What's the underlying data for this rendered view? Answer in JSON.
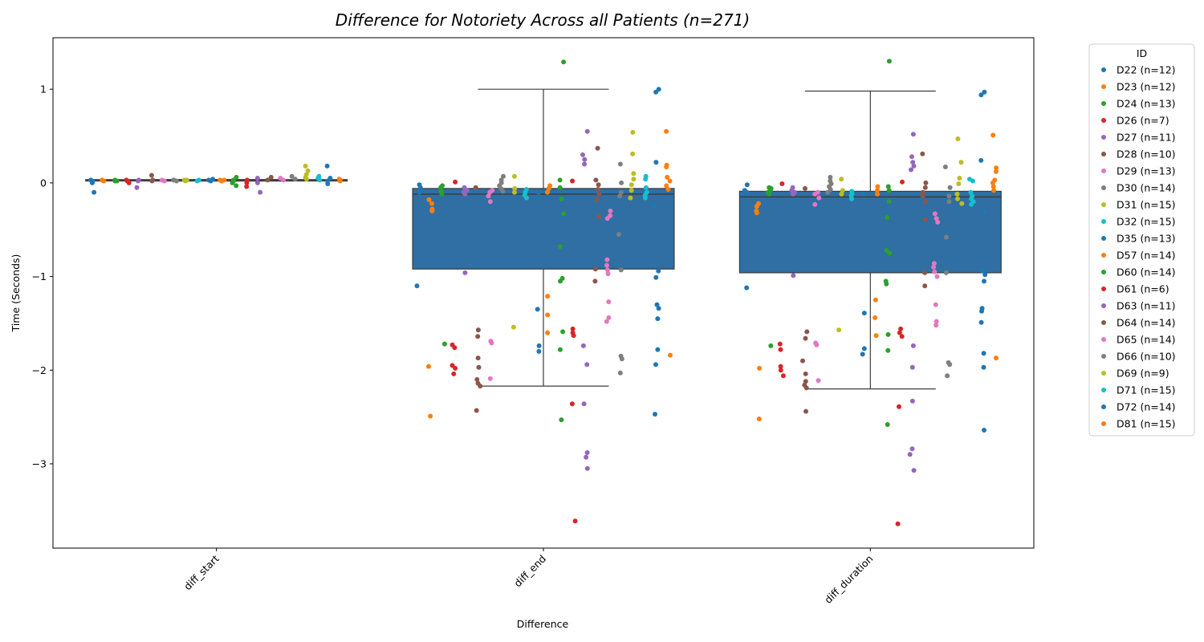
{
  "chart_data": {
    "type": "box",
    "subtype": "boxplot with overlaid stripplot",
    "title": "Difference for Notoriety Across all Patients (n=271)",
    "xlabel": "Difference",
    "ylabel": "Time (Seconds)",
    "categories": [
      "diff_start",
      "diff_end",
      "diff_duration"
    ],
    "ylim": [
      -3.9,
      1.55
    ],
    "yticks": [
      1,
      0,
      -1,
      -2,
      -3
    ],
    "ytick_labels": [
      "1",
      "0",
      "−1",
      "−2",
      "−3"
    ],
    "grid": false,
    "legend": {
      "title": "ID",
      "position": "outside-right"
    },
    "box_color": "#2f6fa3",
    "boxes": [
      {
        "category": "diff_start",
        "q1": 0.02,
        "median": 0.03,
        "q3": 0.035,
        "whisker_low": 0.02,
        "whisker_high": 0.035
      },
      {
        "category": "diff_end",
        "q1": -0.92,
        "median": -0.12,
        "q3": -0.06,
        "whisker_low": -2.17,
        "whisker_high": 1.0
      },
      {
        "category": "diff_duration",
        "q1": -0.96,
        "median": -0.15,
        "q3": -0.09,
        "whisker_low": -2.2,
        "whisker_high": 0.98
      }
    ],
    "series": [
      {
        "name": "D22 (n=12)",
        "color": "#1f77b4",
        "diff_start": [
          0.01,
          0.03,
          0.0,
          -0.1,
          0.02
        ],
        "diff_end": [
          -0.02,
          -1.1,
          -0.05,
          -0.1
        ],
        "diff_duration": [
          -0.02,
          -1.12,
          -0.08,
          -0.1
        ]
      },
      {
        "name": "D23 (n=12)",
        "color": "#ff7f0e",
        "diff_start": [
          0.03,
          0.02,
          0.03
        ],
        "diff_end": [
          -0.18,
          -0.22,
          -0.28,
          -0.3,
          -1.96,
          -2.49
        ],
        "diff_duration": [
          -0.22,
          -0.25,
          -0.3,
          -0.32,
          -1.98,
          -2.52
        ]
      },
      {
        "name": "D24 (n=13)",
        "color": "#2ca02c",
        "diff_start": [
          0.02,
          0.03,
          0.02
        ],
        "diff_end": [
          -0.05,
          -0.08,
          -0.1,
          -0.12,
          -0.03,
          -1.72
        ],
        "diff_duration": [
          -0.05,
          -0.08,
          -0.1,
          -0.12,
          -0.06,
          -1.74
        ]
      },
      {
        "name": "D26 (n=7)",
        "color": "#d62728",
        "diff_start": [
          0.03,
          0.02,
          0.0
        ],
        "diff_end": [
          0.01,
          -1.73,
          -1.76,
          -1.95,
          -1.98,
          -2.04
        ],
        "diff_duration": [
          -0.01,
          -1.72,
          -1.78,
          -1.96,
          -2.0,
          -2.06
        ]
      },
      {
        "name": "D27 (n=11)",
        "color": "#9467bd",
        "diff_start": [
          0.03,
          -0.05,
          0.02
        ],
        "diff_end": [
          -0.05,
          -0.08,
          -0.1,
          -0.12,
          -0.96
        ],
        "diff_duration": [
          -0.05,
          -0.08,
          -0.1,
          -0.12,
          -0.99
        ]
      },
      {
        "name": "D28 (n=10)",
        "color": "#8c564b",
        "diff_start": [
          0.03,
          0.08,
          0.02
        ],
        "diff_end": [
          -0.05,
          -1.57,
          -1.64,
          -1.87,
          -1.97,
          -2.1,
          -2.14,
          -2.17,
          -2.43
        ],
        "diff_duration": [
          -0.06,
          -1.59,
          -1.66,
          -1.9,
          -2.04,
          -2.12,
          -2.16,
          -2.19,
          -2.44
        ]
      },
      {
        "name": "D29 (n=13)",
        "color": "#e377c2",
        "diff_start": [
          0.03,
          0.02
        ],
        "diff_end": [
          -0.08,
          -0.1,
          -0.14,
          -0.2,
          -1.69,
          -1.71,
          -2.09
        ],
        "diff_duration": [
          -0.1,
          -0.12,
          -0.16,
          -0.23,
          -1.71,
          -1.73,
          -2.11
        ]
      },
      {
        "name": "D30 (n=14)",
        "color": "#7f7f7f",
        "diff_start": [
          0.03,
          0.02,
          0.03
        ],
        "diff_end": [
          0.07,
          0.03,
          0.0,
          -0.03,
          -0.06,
          -0.09
        ],
        "diff_duration": [
          0.06,
          0.02,
          -0.01,
          -0.04,
          -0.07,
          -0.1
        ]
      },
      {
        "name": "D31 (n=15)",
        "color": "#bcbd22",
        "diff_start": [
          0.03,
          0.02,
          0.03
        ],
        "diff_end": [
          0.07,
          -0.06,
          -0.1,
          -1.54
        ],
        "diff_duration": [
          0.04,
          -0.08,
          -0.12,
          -1.57
        ]
      },
      {
        "name": "D32 (n=15)",
        "color": "#17becf",
        "diff_start": [
          0.03,
          0.02
        ],
        "diff_end": [
          -0.07,
          -0.1,
          -0.13,
          -0.16
        ],
        "diff_duration": [
          -0.09,
          -0.12,
          -0.14,
          -0.17
        ]
      },
      {
        "name": "D35 (n=13)",
        "color": "#1f77b4",
        "diff_start": [
          0.03,
          0.02,
          0.04
        ],
        "diff_end": [
          -0.1,
          -1.35,
          -1.74,
          -1.8
        ],
        "diff_duration": [
          -0.12,
          -1.39,
          -1.77,
          -1.83
        ]
      },
      {
        "name": "D57 (n=14)",
        "color": "#ff7f0e",
        "diff_start": [
          0.03,
          0.02,
          0.03
        ],
        "diff_end": [
          -0.03,
          -0.06,
          -0.1,
          -1.21,
          -1.41,
          -1.6
        ],
        "diff_duration": [
          -0.04,
          -0.08,
          -0.12,
          -1.25,
          -1.44,
          -1.63
        ]
      },
      {
        "name": "D60 (n=14)",
        "color": "#2ca02c",
        "diff_start": [
          0.06,
          0.03,
          0.0,
          -0.03,
          0.02
        ],
        "diff_end": [
          1.29,
          0.03,
          -0.05,
          -0.17,
          -0.33,
          -0.68,
          -1.02,
          -1.05,
          -1.59,
          -1.78,
          -2.53
        ],
        "diff_duration": [
          1.3,
          -0.04,
          -0.08,
          -0.2,
          -0.37,
          -0.72,
          -0.75,
          -1.05,
          -1.08,
          -1.62,
          -1.79,
          -2.58
        ]
      },
      {
        "name": "D61 (n=6)",
        "color": "#d62728",
        "diff_start": [
          0.03,
          0.0,
          -0.04
        ],
        "diff_end": [
          0.02,
          -1.56,
          -1.6,
          -1.63,
          -2.36,
          -3.61
        ],
        "diff_duration": [
          0.01,
          -1.56,
          -1.6,
          -1.64,
          -2.39,
          -3.64
        ]
      },
      {
        "name": "D63 (n=11)",
        "color": "#9467bd",
        "diff_start": [
          0.05,
          0.0,
          -0.1
        ],
        "diff_end": [
          0.55,
          0.3,
          0.25,
          0.2,
          -1.74,
          -1.94,
          -2.36,
          -2.88,
          -2.93,
          -3.05
        ],
        "diff_duration": [
          0.52,
          0.28,
          0.22,
          0.18,
          0.14,
          -1.74,
          -1.97,
          -2.33,
          -2.84,
          -2.9,
          -3.07
        ]
      },
      {
        "name": "D64 (n=14)",
        "color": "#8c564b",
        "diff_start": [
          0.06,
          0.03
        ],
        "diff_end": [
          0.37,
          0.03,
          -0.02,
          -0.07,
          -0.12,
          -0.18,
          -0.36,
          -0.92,
          -1.05
        ],
        "diff_duration": [
          0.31,
          0.0,
          -0.05,
          -0.1,
          -0.14,
          -0.2,
          -0.39,
          -0.96,
          -1.1
        ]
      },
      {
        "name": "D65 (n=14)",
        "color": "#e377c2",
        "diff_start": [
          0.05,
          0.03
        ],
        "diff_end": [
          -0.3,
          -0.35,
          -0.38,
          -0.82,
          -0.88,
          -0.93,
          -0.97,
          -1.27,
          -1.44,
          -1.48
        ],
        "diff_duration": [
          -0.33,
          -0.38,
          -0.42,
          -0.86,
          -0.9,
          -0.95,
          -1.0,
          -1.3,
          -1.48,
          -1.52
        ]
      },
      {
        "name": "D66 (n=10)",
        "color": "#7f7f7f",
        "diff_start": [
          0.07,
          0.04
        ],
        "diff_end": [
          0.2,
          0.0,
          -0.1,
          -0.14,
          -0.55,
          -0.93,
          -1.85,
          -1.88,
          -2.03
        ],
        "diff_duration": [
          0.17,
          -0.05,
          -0.14,
          -0.2,
          -0.58,
          -0.96,
          -1.92,
          -1.94,
          -2.06
        ]
      },
      {
        "name": "D69 (n=9)",
        "color": "#bcbd22",
        "diff_start": [
          0.18,
          0.13,
          0.09,
          0.06,
          0.04
        ],
        "diff_end": [
          0.54,
          0.31,
          0.1,
          0.04,
          -0.02,
          -0.08,
          -0.16
        ],
        "diff_duration": [
          0.47,
          0.22,
          0.05,
          -0.01,
          -0.12,
          -0.17,
          -0.22
        ]
      },
      {
        "name": "D71 (n=15)",
        "color": "#17becf",
        "diff_start": [
          0.07,
          0.05,
          0.03
        ],
        "diff_end": [
          0.07,
          0.04,
          -0.05,
          -0.1,
          -0.13,
          -0.16
        ],
        "diff_duration": [
          0.04,
          0.02,
          -0.1,
          -0.14,
          -0.17,
          -0.2,
          -0.23
        ]
      },
      {
        "name": "D72 (n=14)",
        "color": "#1f77b4",
        "diff_start": [
          0.18,
          0.05,
          0.02,
          -0.01
        ],
        "diff_end": [
          1.0,
          0.97,
          0.22,
          -0.25,
          -0.94,
          -1.01,
          -1.3,
          -1.34,
          -1.45,
          -1.78,
          -1.94,
          -2.47
        ],
        "diff_duration": [
          0.97,
          0.94,
          0.24,
          -0.31,
          -0.94,
          -0.98,
          -1.05,
          -1.34,
          -1.37,
          -1.49,
          -1.82,
          -1.97,
          -2.64
        ]
      },
      {
        "name": "D81 (n=15)",
        "color": "#ff7f0e",
        "diff_start": [
          0.04,
          0.03,
          0.02
        ],
        "diff_end": [
          0.55,
          0.19,
          0.17,
          0.06,
          0.02,
          -0.03,
          -0.07,
          -1.84
        ],
        "diff_duration": [
          0.51,
          0.16,
          0.12,
          0.03,
          0.0,
          -0.04,
          -0.08,
          -1.87
        ]
      }
    ]
  }
}
